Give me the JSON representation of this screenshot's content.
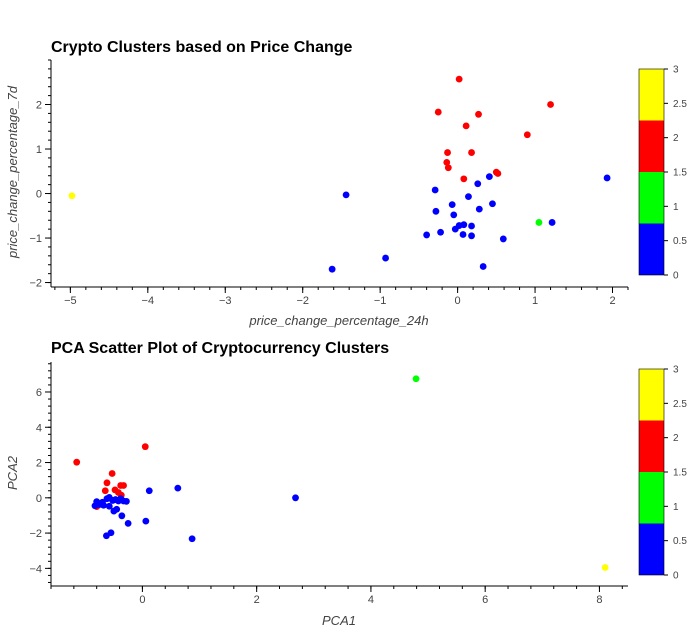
{
  "chart_data": [
    {
      "type": "scatter",
      "title": "Crypto Clusters based on Price Change",
      "xlabel": "price_change_percentage_24h",
      "ylabel": "price_change_percentage_7d",
      "xlim": [
        -5.25,
        2.2
      ],
      "ylim": [
        -2.1,
        3.0
      ],
      "xticks": [
        -5,
        -4,
        -3,
        -2,
        -1,
        0,
        1,
        2
      ],
      "yticks": [
        -2,
        -1,
        0,
        1,
        2
      ],
      "color_bar": {
        "range": [
          0,
          3
        ],
        "ticks": [
          0,
          0.5,
          1,
          1.5,
          2,
          2.5,
          3
        ],
        "bins": [
          "#0000ff",
          "#00ff00",
          "#ff0000",
          "#ffff00"
        ]
      },
      "points": [
        {
          "x": -4.98,
          "y": -0.05,
          "cluster": 3
        },
        {
          "x": -1.44,
          "y": -0.03,
          "cluster": 0
        },
        {
          "x": -1.62,
          "y": -1.7,
          "cluster": 0
        },
        {
          "x": -0.93,
          "y": -1.45,
          "cluster": 0
        },
        {
          "x": -0.4,
          "y": -0.93,
          "cluster": 0
        },
        {
          "x": -0.22,
          "y": -0.87,
          "cluster": 0
        },
        {
          "x": -0.28,
          "y": -0.4,
          "cluster": 0
        },
        {
          "x": -0.29,
          "y": 0.08,
          "cluster": 0
        },
        {
          "x": -0.07,
          "y": -0.25,
          "cluster": 0
        },
        {
          "x": -0.05,
          "y": -0.48,
          "cluster": 0
        },
        {
          "x": -0.03,
          "y": -0.8,
          "cluster": 0
        },
        {
          "x": 0.02,
          "y": -0.72,
          "cluster": 0
        },
        {
          "x": 0.07,
          "y": -0.92,
          "cluster": 0
        },
        {
          "x": 0.08,
          "y": -0.7,
          "cluster": 0
        },
        {
          "x": 0.14,
          "y": -0.07,
          "cluster": 0
        },
        {
          "x": 0.18,
          "y": -0.73,
          "cluster": 0
        },
        {
          "x": 0.18,
          "y": -0.95,
          "cluster": 0
        },
        {
          "x": 0.26,
          "y": 0.22,
          "cluster": 0
        },
        {
          "x": 0.28,
          "y": -0.35,
          "cluster": 0
        },
        {
          "x": 0.33,
          "y": -1.64,
          "cluster": 0
        },
        {
          "x": 0.41,
          "y": 0.38,
          "cluster": 0
        },
        {
          "x": 0.45,
          "y": -0.23,
          "cluster": 0
        },
        {
          "x": 0.59,
          "y": -1.02,
          "cluster": 0
        },
        {
          "x": 1.22,
          "y": -0.65,
          "cluster": 0
        },
        {
          "x": 1.93,
          "y": 0.35,
          "cluster": 0
        },
        {
          "x": 1.05,
          "y": -0.65,
          "cluster": 1
        },
        {
          "x": 0.02,
          "y": 2.57,
          "cluster": 2
        },
        {
          "x": -0.25,
          "y": 1.83,
          "cluster": 2
        },
        {
          "x": 0.27,
          "y": 1.78,
          "cluster": 2
        },
        {
          "x": 0.11,
          "y": 1.52,
          "cluster": 2
        },
        {
          "x": -0.13,
          "y": 0.92,
          "cluster": 2
        },
        {
          "x": 0.18,
          "y": 0.92,
          "cluster": 2
        },
        {
          "x": -0.14,
          "y": 0.7,
          "cluster": 2
        },
        {
          "x": -0.12,
          "y": 0.58,
          "cluster": 2
        },
        {
          "x": 0.08,
          "y": 0.33,
          "cluster": 2
        },
        {
          "x": 0.5,
          "y": 0.48,
          "cluster": 2
        },
        {
          "x": 0.52,
          "y": 0.45,
          "cluster": 2
        },
        {
          "x": 0.9,
          "y": 1.32,
          "cluster": 2
        },
        {
          "x": 1.2,
          "y": 2.0,
          "cluster": 2
        }
      ]
    },
    {
      "type": "scatter",
      "title": "PCA Scatter Plot of Cryptocurrency Clusters",
      "xlabel": "PCA1",
      "ylabel": "PCA2",
      "xlim": [
        -1.6,
        8.5
      ],
      "ylim": [
        -5.0,
        7.7
      ],
      "xticks": [
        0,
        2,
        4,
        6,
        8
      ],
      "yticks": [
        -4,
        -2,
        0,
        2,
        4,
        6
      ],
      "color_bar": {
        "range": [
          0,
          3
        ],
        "ticks": [
          0,
          0.5,
          1,
          1.5,
          2,
          2.5,
          3
        ],
        "bins": [
          "#0000ff",
          "#00ff00",
          "#ff0000",
          "#ffff00"
        ]
      },
      "points": [
        {
          "x": 4.79,
          "y": 6.75,
          "cluster": 1
        },
        {
          "x": 8.1,
          "y": -3.95,
          "cluster": 3
        },
        {
          "x": -1.15,
          "y": 2.02,
          "cluster": 2
        },
        {
          "x": 0.05,
          "y": 2.9,
          "cluster": 2
        },
        {
          "x": -0.53,
          "y": 1.38,
          "cluster": 2
        },
        {
          "x": -0.62,
          "y": 0.85,
          "cluster": 2
        },
        {
          "x": -0.38,
          "y": 0.7,
          "cluster": 2
        },
        {
          "x": -0.33,
          "y": 0.7,
          "cluster": 2
        },
        {
          "x": -0.65,
          "y": 0.4,
          "cluster": 2
        },
        {
          "x": -0.48,
          "y": 0.45,
          "cluster": 2
        },
        {
          "x": -0.42,
          "y": 0.3,
          "cluster": 2
        },
        {
          "x": -0.37,
          "y": 0.15,
          "cluster": 2
        },
        {
          "x": -0.8,
          "y": -0.5,
          "cluster": 2
        },
        {
          "x": 0.12,
          "y": 0.4,
          "cluster": 0
        },
        {
          "x": 0.62,
          "y": 0.55,
          "cluster": 0
        },
        {
          "x": 2.68,
          "y": 0.0,
          "cluster": 0
        },
        {
          "x": 0.87,
          "y": -2.32,
          "cluster": 0
        },
        {
          "x": 0.06,
          "y": -1.32,
          "cluster": 0
        },
        {
          "x": -0.25,
          "y": -1.45,
          "cluster": 0
        },
        {
          "x": -0.36,
          "y": -1.02,
          "cluster": 0
        },
        {
          "x": -0.63,
          "y": -2.15,
          "cluster": 0
        },
        {
          "x": -0.55,
          "y": -1.98,
          "cluster": 0
        },
        {
          "x": -0.45,
          "y": -0.65,
          "cluster": 0
        },
        {
          "x": -0.58,
          "y": -0.48,
          "cluster": 0
        },
        {
          "x": -0.68,
          "y": -0.42,
          "cluster": 0
        },
        {
          "x": -0.75,
          "y": -0.38,
          "cluster": 0
        },
        {
          "x": -0.83,
          "y": -0.45,
          "cluster": 0
        },
        {
          "x": -0.8,
          "y": -0.22,
          "cluster": 0
        },
        {
          "x": -0.7,
          "y": -0.25,
          "cluster": 0
        },
        {
          "x": -0.58,
          "y": 0.02,
          "cluster": 0
        },
        {
          "x": -0.52,
          "y": -0.15,
          "cluster": 0
        },
        {
          "x": -0.47,
          "y": -0.1,
          "cluster": 0
        },
        {
          "x": -0.42,
          "y": -0.18,
          "cluster": 0
        },
        {
          "x": -0.38,
          "y": -0.05,
          "cluster": 0
        },
        {
          "x": -0.33,
          "y": -0.18,
          "cluster": 0
        },
        {
          "x": -0.28,
          "y": -0.2,
          "cluster": 0
        },
        {
          "x": -0.5,
          "y": -0.75,
          "cluster": 0
        },
        {
          "x": -0.62,
          "y": -0.05,
          "cluster": 0
        }
      ]
    }
  ]
}
